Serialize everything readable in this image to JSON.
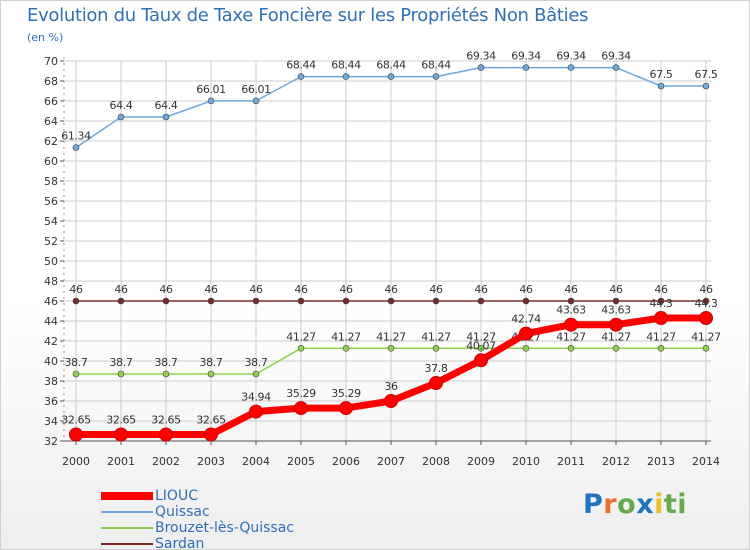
{
  "header": {
    "title": "Evolution du Taux de Taxe Foncière sur les Propriétés Non Bâties",
    "subtitle": "(en %)"
  },
  "logo": {
    "letters": [
      "P",
      "r",
      "o",
      "x",
      "i",
      "ti"
    ]
  },
  "colors": {
    "text": "#2f6fb6",
    "grid": "#cccccc",
    "axis": "#555555"
  },
  "chart_data": {
    "type": "line",
    "title": "Evolution du Taux de Taxe Foncière sur les Propriétés Non Bâties",
    "ylabel": "(en %)",
    "xlabel": "",
    "ylim": [
      32,
      70
    ],
    "ytick_step": 2,
    "grid": true,
    "legend_position": "bottom-left",
    "x": [
      "2000",
      "2001",
      "2002",
      "2003",
      "2004",
      "2005",
      "2006",
      "2007",
      "2008",
      "2009",
      "2010",
      "2011",
      "2012",
      "2013",
      "2014"
    ],
    "series": [
      {
        "name": "Sardan",
        "color": "#7a2a2a",
        "values": [
          46,
          46,
          46,
          46,
          46,
          46,
          46,
          46,
          46,
          46,
          46,
          46,
          46,
          46,
          46
        ],
        "labels": [
          "46",
          "46",
          "46",
          "46",
          "46",
          "46",
          "46",
          "46",
          "46",
          "46",
          "46",
          "46",
          "46",
          "46",
          "46"
        ]
      },
      {
        "name": "Brouzet-lès-Quissac",
        "color": "#8fd14f",
        "values": [
          38.7,
          38.7,
          38.7,
          38.7,
          38.7,
          41.27,
          41.27,
          41.27,
          41.27,
          41.27,
          41.27,
          41.27,
          41.27,
          41.27,
          41.27
        ],
        "labels": [
          "38.7",
          "38.7",
          "38.7",
          "38.7",
          "38.7",
          "41.27",
          "41.27",
          "41.27",
          "41.27",
          "41.27",
          "41.27",
          "41.27",
          "41.27",
          "41.27",
          "41.27"
        ]
      },
      {
        "name": "Quissac",
        "color": "#6fa8dc",
        "values": [
          61.34,
          64.4,
          64.4,
          66.01,
          66.01,
          68.44,
          68.44,
          68.44,
          68.44,
          69.34,
          69.34,
          69.34,
          69.34,
          67.5,
          67.5
        ],
        "labels": [
          "61.34",
          "64.4",
          "64.4",
          "66.01",
          "66.01",
          "68.44",
          "68.44",
          "68.44",
          "68.44",
          "69.34",
          "69.34",
          "69.34",
          "69.34",
          "67.5",
          "67.5"
        ]
      },
      {
        "name": "LIOUC",
        "color": "#ff0000",
        "values": [
          32.65,
          32.65,
          32.65,
          32.65,
          34.94,
          35.29,
          35.29,
          36,
          37.8,
          40.07,
          42.74,
          43.63,
          43.63,
          44.3,
          44.3
        ],
        "labels": [
          "32.65",
          "32.65",
          "32.65",
          "32.65",
          "34.94",
          "35.29",
          "35.29",
          "36",
          "37.8",
          "40.07",
          "42.74",
          "43.63",
          "43.63",
          "44.3",
          "44.3"
        ]
      }
    ]
  }
}
